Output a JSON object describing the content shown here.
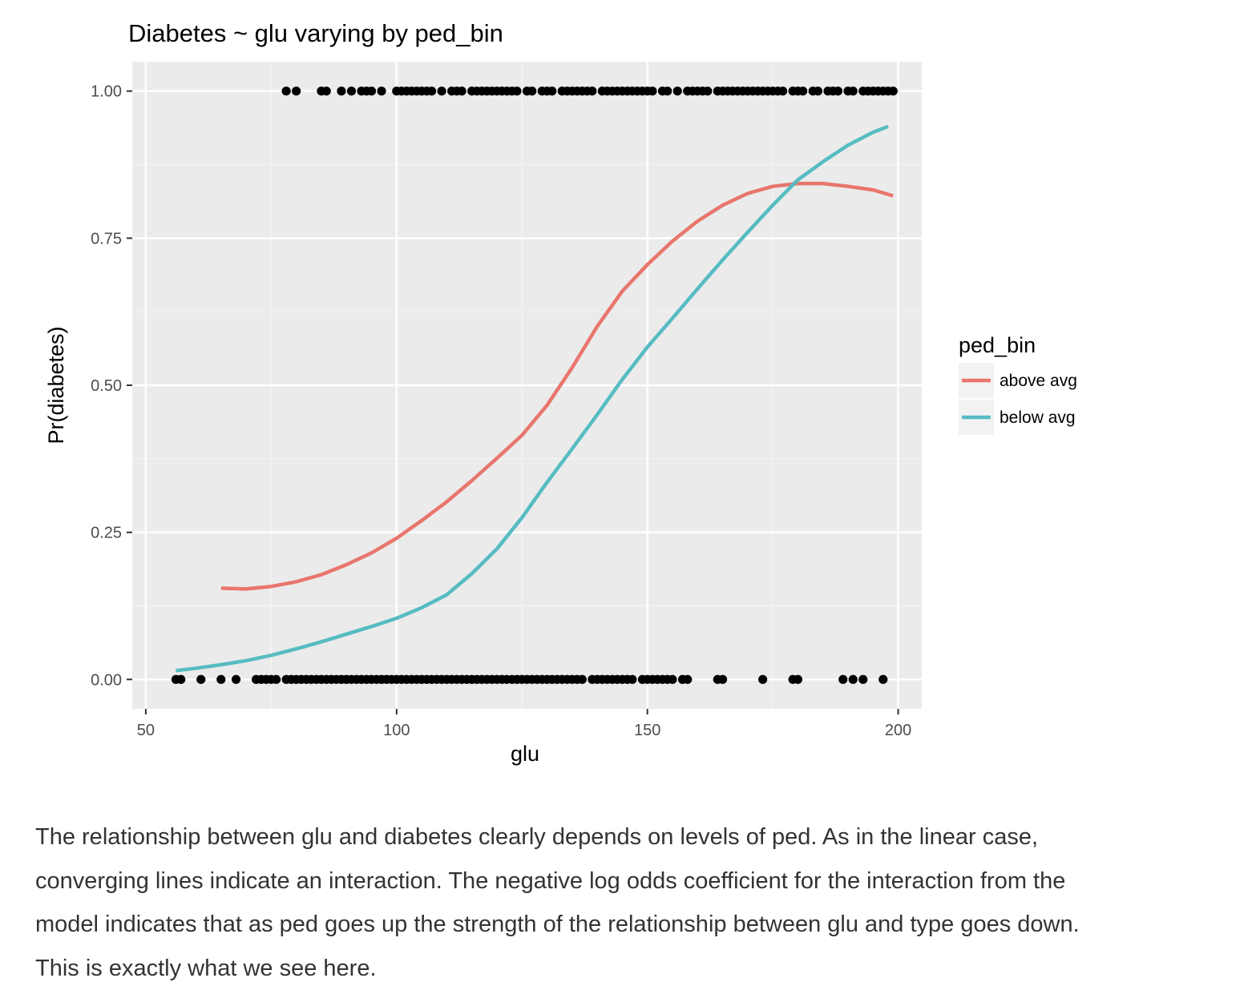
{
  "chart_data": {
    "type": "scatter",
    "title": "Diabetes ~ glu varying by ped_bin",
    "xlabel": "glu",
    "ylabel": "Pr(diabetes)",
    "xlim": [
      47.3,
      204.7
    ],
    "ylim": [
      -0.05,
      1.05
    ],
    "xticks": [
      50,
      100,
      150,
      200
    ],
    "xtick_labels": [
      "50",
      "100",
      "150",
      "200"
    ],
    "yticks": [
      0,
      0.25,
      0.5,
      0.75,
      1
    ],
    "ytick_labels": [
      "0.00",
      "0.25",
      "0.50",
      "0.75",
      "1.00"
    ],
    "grid": true,
    "legend": {
      "title": "ped_bin",
      "placement": "right"
    },
    "series": [
      {
        "name": "above avg",
        "kind": "line",
        "color": "#E8766D",
        "x": [
          65,
          70,
          75,
          80,
          85,
          90,
          95,
          100,
          105,
          110,
          115,
          120,
          125,
          130,
          135,
          140,
          145,
          150,
          155,
          160,
          165,
          170,
          175,
          180,
          185,
          190,
          195,
          199
        ],
        "y": [
          0.155,
          0.154,
          0.158,
          0.166,
          0.178,
          0.195,
          0.215,
          0.24,
          0.27,
          0.302,
          0.338,
          0.376,
          0.415,
          0.466,
          0.53,
          0.6,
          0.66,
          0.705,
          0.745,
          0.779,
          0.806,
          0.826,
          0.838,
          0.843,
          0.843,
          0.838,
          0.832,
          0.822
        ]
      },
      {
        "name": "below avg",
        "kind": "line",
        "color": "#56BCC2",
        "x": [
          56,
          60,
          65,
          70,
          75,
          80,
          85,
          90,
          95,
          100,
          105,
          110,
          115,
          120,
          125,
          130,
          135,
          140,
          145,
          150,
          155,
          160,
          165,
          170,
          175,
          180,
          185,
          190,
          195,
          198
        ],
        "y": [
          0.015,
          0.019,
          0.025,
          0.032,
          0.041,
          0.052,
          0.064,
          0.077,
          0.09,
          0.104,
          0.122,
          0.144,
          0.18,
          0.222,
          0.275,
          0.335,
          0.392,
          0.45,
          0.51,
          0.565,
          0.614,
          0.664,
          0.713,
          0.76,
          0.806,
          0.849,
          0.88,
          0.908,
          0.93,
          0.94
        ]
      },
      {
        "kind": "points",
        "color": "#000000",
        "x": [
          78,
          80,
          85,
          86,
          89,
          91,
          93,
          94,
          95,
          97,
          100,
          101,
          102,
          103,
          104,
          105,
          106,
          107,
          109,
          111,
          112,
          113,
          115,
          116,
          117,
          118,
          119,
          120,
          121,
          122,
          123,
          124,
          126,
          127,
          129,
          130,
          131,
          133,
          134,
          135,
          136,
          137,
          138,
          139,
          141,
          142,
          143,
          144,
          145,
          146,
          147,
          148,
          149,
          150,
          151,
          153,
          154,
          156,
          158,
          159,
          160,
          161,
          162,
          164,
          165,
          166,
          167,
          168,
          169,
          170,
          171,
          172,
          173,
          174,
          175,
          176,
          177,
          179,
          180,
          181,
          183,
          184,
          186,
          187,
          188,
          190,
          191,
          193,
          194,
          195,
          196,
          197,
          198,
          199
        ],
        "y": [
          1,
          1,
          1,
          1,
          1,
          1,
          1,
          1,
          1,
          1,
          1,
          1,
          1,
          1,
          1,
          1,
          1,
          1,
          1,
          1,
          1,
          1,
          1,
          1,
          1,
          1,
          1,
          1,
          1,
          1,
          1,
          1,
          1,
          1,
          1,
          1,
          1,
          1,
          1,
          1,
          1,
          1,
          1,
          1,
          1,
          1,
          1,
          1,
          1,
          1,
          1,
          1,
          1,
          1,
          1,
          1,
          1,
          1,
          1,
          1,
          1,
          1,
          1,
          1,
          1,
          1,
          1,
          1,
          1,
          1,
          1,
          1,
          1,
          1,
          1,
          1,
          1,
          1,
          1,
          1,
          1,
          1,
          1,
          1,
          1,
          1,
          1,
          1,
          1,
          1,
          1,
          1,
          1,
          1
        ]
      },
      {
        "kind": "points",
        "color": "#000000",
        "x": [
          56,
          57,
          61,
          65,
          68,
          72,
          73,
          74,
          75,
          76,
          78,
          79,
          80,
          81,
          82,
          83,
          84,
          85,
          86,
          87,
          88,
          89,
          90,
          91,
          92,
          93,
          94,
          95,
          96,
          97,
          98,
          99,
          100,
          101,
          102,
          103,
          104,
          105,
          106,
          107,
          108,
          109,
          110,
          111,
          112,
          113,
          114,
          115,
          116,
          117,
          118,
          119,
          120,
          121,
          122,
          123,
          124,
          125,
          126,
          127,
          128,
          129,
          130,
          131,
          132,
          133,
          134,
          135,
          136,
          137,
          139,
          140,
          141,
          142,
          143,
          144,
          145,
          146,
          147,
          149,
          150,
          151,
          152,
          153,
          154,
          155,
          157,
          158,
          164,
          165,
          173,
          179,
          180,
          189,
          191,
          193,
          197
        ],
        "y": [
          0,
          0,
          0,
          0,
          0,
          0,
          0,
          0,
          0,
          0,
          0,
          0,
          0,
          0,
          0,
          0,
          0,
          0,
          0,
          0,
          0,
          0,
          0,
          0,
          0,
          0,
          0,
          0,
          0,
          0,
          0,
          0,
          0,
          0,
          0,
          0,
          0,
          0,
          0,
          0,
          0,
          0,
          0,
          0,
          0,
          0,
          0,
          0,
          0,
          0,
          0,
          0,
          0,
          0,
          0,
          0,
          0,
          0,
          0,
          0,
          0,
          0,
          0,
          0,
          0,
          0,
          0,
          0,
          0,
          0,
          0,
          0,
          0,
          0,
          0,
          0,
          0,
          0,
          0,
          0,
          0,
          0,
          0,
          0,
          0,
          0,
          0,
          0,
          0,
          0,
          0,
          0,
          0,
          0,
          0,
          0,
          0
        ]
      }
    ]
  },
  "paragraph": {
    "lines": [
      "The relationship between glu and diabetes clearly depends on levels of ped. As in the linear case,",
      "converging lines indicate an interaction. The negative log odds coefficient for the interaction from the",
      "model indicates that as ped goes up the strength of the relationship between glu and type goes down.",
      "This is exactly what we see here."
    ]
  }
}
